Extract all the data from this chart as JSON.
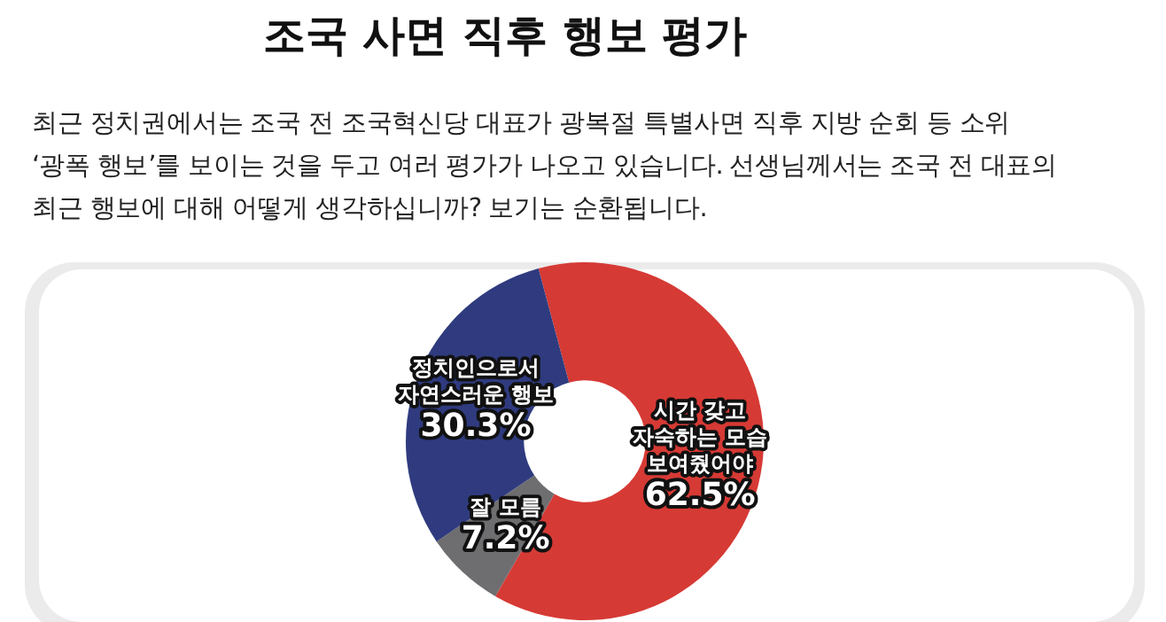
{
  "chart_data": {
    "type": "donut",
    "title": "조국 사면 직후 행보 평가",
    "subtitle": "최근 정치권에서는 조국 전 조국혁신당 대표가 광복절 특별사면 직후 지방 순회 등 소위\n‘광폭 행보’를 보이는 것을 두고 여러 평가가 나오고 있습니다. 선생님께서는 조국 전 대표의\n최근 행보에 대해 어떻게 생각하십니까? 보기는 순환됩니다.",
    "categories": [
      "시간 갖고\n자숙하는 모습\n보여줬어야",
      "잘 모름",
      "정치인으로서\n자연스러운 행보"
    ],
    "values": [
      62.5,
      7.2,
      30.3
    ],
    "colors": [
      "#d63a35",
      "#6e6e70",
      "#2f3b7e"
    ],
    "value_labels": [
      "62.5%",
      "7.2%",
      "30.3%"
    ],
    "legend": false
  }
}
